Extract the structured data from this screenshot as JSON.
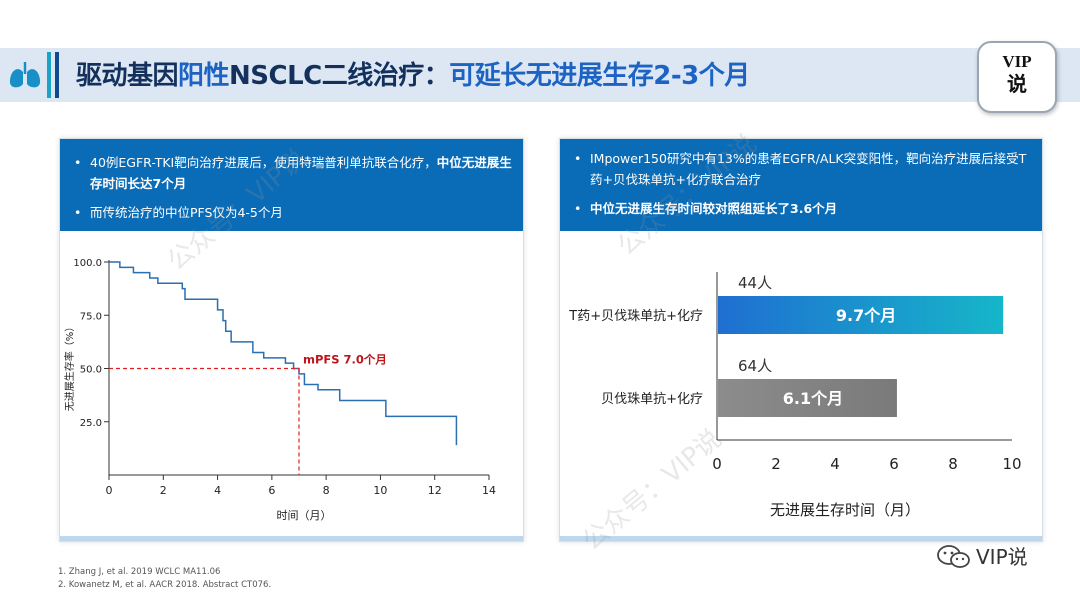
{
  "header": {
    "title_part1": "驱动基因",
    "title_highlight": "阳性",
    "title_part2": "NSCLC二线治疗：",
    "title_part3": "可延长无进展生存2-3个月",
    "badge_line1": "VIP",
    "badge_line2": "说"
  },
  "left_panel": {
    "bullets": [
      {
        "prefix": "40例EGFR-TKI靶向治疗进展后，使用特瑞普利单抗联合化疗，",
        "bold": "中位无进展生存时间长达7个月"
      },
      {
        "prefix": "而传统治疗的中位PFS仅为4-5个月",
        "bold": ""
      }
    ]
  },
  "right_panel": {
    "bullets": [
      {
        "prefix": "IMpower150研究中有13%的患者EGFR/ALK突变阳性，靶向治疗进展后接受T药+贝伐珠单抗+化疗联合治疗",
        "bold": ""
      },
      {
        "prefix": "",
        "bold": "中位无进展生存时间较对照组延长了3.6个月"
      }
    ]
  },
  "chart_data": [
    {
      "type": "line",
      "subtype": "kaplan-meier",
      "xlabel": "时间（月）",
      "ylabel": "无进展生存率（%）",
      "xlim": [
        0,
        14
      ],
      "ylim": [
        0,
        100
      ],
      "xticks": [
        0,
        2,
        4,
        6,
        8,
        10,
        12,
        14
      ],
      "yticks": [
        25.0,
        50.0,
        75.0,
        100.0
      ],
      "series": [
        {
          "points": [
            [
              0,
              100
            ],
            [
              0.4,
              100
            ],
            [
              0.4,
              97.5
            ],
            [
              0.9,
              97.5
            ],
            [
              0.9,
              95
            ],
            [
              1.5,
              95
            ],
            [
              1.5,
              92.5
            ],
            [
              1.8,
              92.5
            ],
            [
              1.8,
              90
            ],
            [
              2.7,
              90
            ],
            [
              2.7,
              87.5
            ],
            [
              2.8,
              87.5
            ],
            [
              2.8,
              82.5
            ],
            [
              4.0,
              82.5
            ],
            [
              4.0,
              77.5
            ],
            [
              4.2,
              77.5
            ],
            [
              4.2,
              72.5
            ],
            [
              4.3,
              72.5
            ],
            [
              4.3,
              67.5
            ],
            [
              4.5,
              67.5
            ],
            [
              4.5,
              62.5
            ],
            [
              5.3,
              62.5
            ],
            [
              5.3,
              57.5
            ],
            [
              5.7,
              57.5
            ],
            [
              5.7,
              55
            ],
            [
              6.5,
              55
            ],
            [
              6.5,
              52.5
            ],
            [
              6.8,
              52.5
            ],
            [
              6.8,
              50
            ],
            [
              7.0,
              50
            ],
            [
              7.0,
              47.5
            ],
            [
              7.2,
              47.5
            ],
            [
              7.2,
              42.5
            ],
            [
              7.7,
              42.5
            ],
            [
              7.7,
              40
            ],
            [
              8.5,
              40
            ],
            [
              8.5,
              35
            ],
            [
              10.2,
              35
            ],
            [
              10.2,
              27.5
            ],
            [
              12.8,
              27.5
            ],
            [
              12.8,
              14
            ]
          ]
        }
      ],
      "median": {
        "x": 7.0,
        "y": 50,
        "label": "mPFS 7.0个月"
      }
    },
    {
      "type": "bar",
      "orientation": "horizontal",
      "xlabel": "无进展生存时间（月）",
      "xlim": [
        0,
        10
      ],
      "xticks": [
        0,
        2,
        4,
        6,
        8,
        10
      ],
      "categories": [
        "T药+贝伐珠单抗+化疗",
        "贝伐珠单抗+化疗"
      ],
      "values": [
        9.7,
        6.1
      ],
      "value_labels": [
        "9.7个月",
        "6.1个月"
      ],
      "counts": [
        "44人",
        "64人"
      ],
      "colors": [
        "#1f6fd1",
        "#8c8c8c"
      ]
    }
  ],
  "watermarks": [
    "公众号：VIP说",
    "公众号：VIP说",
    "公众号：VIP说"
  ],
  "footnotes": [
    "1. Zhang J, et al. 2019 WCLC MA11.06",
    "2. Kowanetz M, et al. AACR 2018. Abstract CT076."
  ],
  "wechat_label": "VIP说",
  "icons": [
    "lung-icon",
    "wechat-icon"
  ]
}
